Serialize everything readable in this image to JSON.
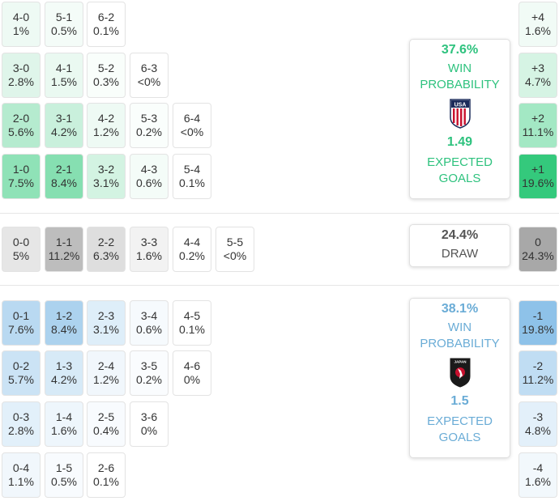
{
  "usa": {
    "win_probability": "37.6%",
    "win_label_1": "WIN",
    "win_label_2": "PROBABILITY",
    "expected_goals": "1.49",
    "xg_label_1": "EXPECTED",
    "xg_label_2": "GOALS",
    "crest_text": "USA",
    "color": "#2ec27e",
    "score_rows": [
      [
        {
          "score": "4-0",
          "pct": "1%",
          "shade": "#eefaf4"
        },
        {
          "score": "5-1",
          "pct": "0.5%",
          "shade": "#f4fcf8"
        },
        {
          "score": "6-2",
          "pct": "0.1%",
          "shade": "#ffffff"
        }
      ],
      [
        {
          "score": "3-0",
          "pct": "2.8%",
          "shade": "#dff5ea"
        },
        {
          "score": "4-1",
          "pct": "1.5%",
          "shade": "#eaf9f1"
        },
        {
          "score": "5-2",
          "pct": "0.3%",
          "shade": "#f9fefb"
        },
        {
          "score": "6-3",
          "pct": "<0%",
          "shade": "#ffffff"
        }
      ],
      [
        {
          "score": "2-0",
          "pct": "5.6%",
          "shade": "#b5ebcf"
        },
        {
          "score": "3-1",
          "pct": "4.2%",
          "shade": "#c9f0dc"
        },
        {
          "score": "4-2",
          "pct": "1.2%",
          "shade": "#eefaf4"
        },
        {
          "score": "5-3",
          "pct": "0.2%",
          "shade": "#fafefc"
        },
        {
          "score": "6-4",
          "pct": "<0%",
          "shade": "#ffffff"
        }
      ],
      [
        {
          "score": "1-0",
          "pct": "7.5%",
          "shade": "#8fe2b7"
        },
        {
          "score": "2-1",
          "pct": "8.4%",
          "shade": "#86dfb1"
        },
        {
          "score": "3-2",
          "pct": "3.1%",
          "shade": "#d3f3e2"
        },
        {
          "score": "4-3",
          "pct": "0.6%",
          "shade": "#f4fcf8"
        },
        {
          "score": "5-4",
          "pct": "0.1%",
          "shade": "#ffffff"
        }
      ]
    ],
    "margins": [
      {
        "label": "+4",
        "pct": "1.6%",
        "shade": "#f1fbf6"
      },
      {
        "label": "+3",
        "pct": "4.7%",
        "shade": "#d6f4e4"
      },
      {
        "label": "+2",
        "pct": "11.1%",
        "shade": "#a3e8c4"
      },
      {
        "label": "+1",
        "pct": "19.6%",
        "shade": "#34c97c"
      }
    ]
  },
  "draw": {
    "probability": "24.4%",
    "label": "DRAW",
    "scores": [
      {
        "score": "0-0",
        "pct": "5%",
        "shade": "#e6e6e6"
      },
      {
        "score": "1-1",
        "pct": "11.2%",
        "shade": "#bdbdbd"
      },
      {
        "score": "2-2",
        "pct": "6.3%",
        "shade": "#dedede"
      },
      {
        "score": "3-3",
        "pct": "1.6%",
        "shade": "#f2f2f2"
      },
      {
        "score": "4-4",
        "pct": "0.2%",
        "shade": "#ffffff"
      },
      {
        "score": "5-5",
        "pct": "<0%",
        "shade": "#ffffff"
      }
    ],
    "margin": {
      "label": "0",
      "pct": "24.3%",
      "shade": "#a8a8a8"
    }
  },
  "japan": {
    "win_probability": "38.1%",
    "win_label_1": "WIN",
    "win_label_2": "PROBABILITY",
    "expected_goals": "1.5",
    "xg_label_1": "EXPECTED",
    "xg_label_2": "GOALS",
    "crest_text": "JAPAN",
    "color": "#6aacd6",
    "score_rows": [
      [
        {
          "score": "0-1",
          "pct": "7.6%",
          "shade": "#b9d9f1"
        },
        {
          "score": "1-2",
          "pct": "8.4%",
          "shade": "#acd2ee"
        },
        {
          "score": "2-3",
          "pct": "3.1%",
          "shade": "#deeef9"
        },
        {
          "score": "3-4",
          "pct": "0.6%",
          "shade": "#f6fafd"
        },
        {
          "score": "4-5",
          "pct": "0.1%",
          "shade": "#ffffff"
        }
      ],
      [
        {
          "score": "0-2",
          "pct": "5.7%",
          "shade": "#cbe3f5"
        },
        {
          "score": "1-3",
          "pct": "4.2%",
          "shade": "#d7eaf7"
        },
        {
          "score": "2-4",
          "pct": "1.2%",
          "shade": "#f1f7fc"
        },
        {
          "score": "3-5",
          "pct": "0.2%",
          "shade": "#fafcfe"
        },
        {
          "score": "4-6",
          "pct": "0%",
          "shade": "#ffffff"
        }
      ],
      [
        {
          "score": "0-3",
          "pct": "2.8%",
          "shade": "#e2f0fa"
        },
        {
          "score": "1-4",
          "pct": "1.6%",
          "shade": "#eef6fc"
        },
        {
          "score": "2-5",
          "pct": "0.4%",
          "shade": "#f8fbfe"
        },
        {
          "score": "3-6",
          "pct": "0%",
          "shade": "#ffffff"
        }
      ],
      [
        {
          "score": "0-4",
          "pct": "1.1%",
          "shade": "#f1f7fc"
        },
        {
          "score": "1-5",
          "pct": "0.5%",
          "shade": "#f8fbfe"
        },
        {
          "score": "2-6",
          "pct": "0.1%",
          "shade": "#ffffff"
        }
      ]
    ],
    "margins": [
      {
        "label": "-1",
        "pct": "19.8%",
        "shade": "#8ec2e9"
      },
      {
        "label": "-2",
        "pct": "11.2%",
        "shade": "#c0ddf3"
      },
      {
        "label": "-3",
        "pct": "4.8%",
        "shade": "#e3f0fa"
      },
      {
        "label": "-4",
        "pct": "1.6%",
        "shade": "#f2f8fc"
      }
    ]
  }
}
